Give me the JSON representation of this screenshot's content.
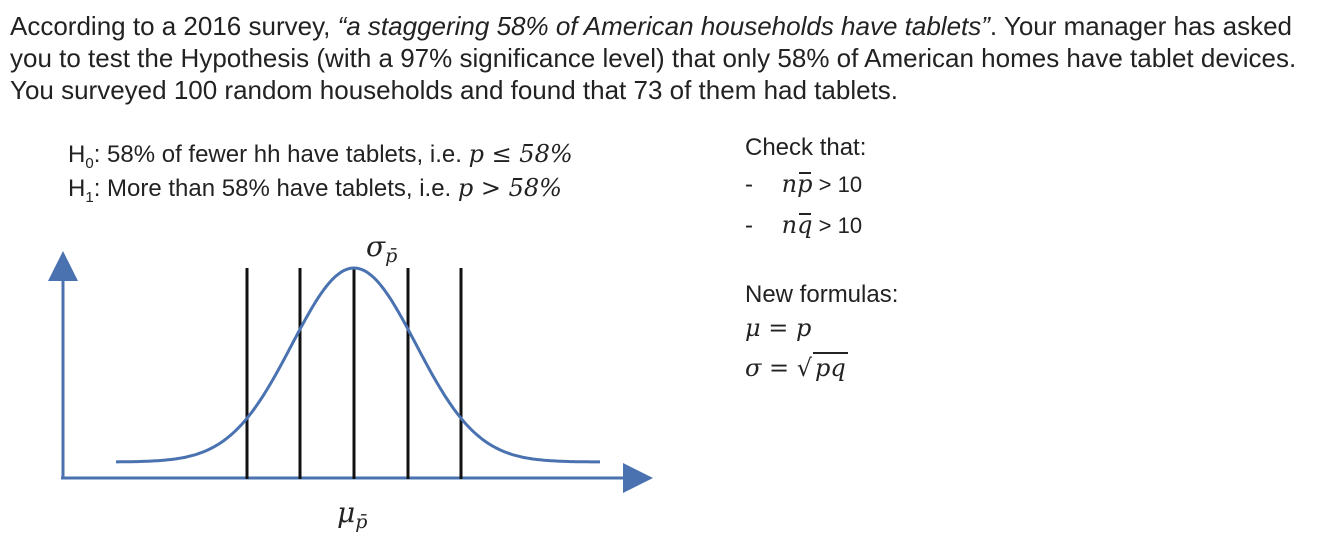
{
  "intro": {
    "part1": "According to a 2016 survey, ",
    "quote": "“a staggering 58% of American households have tablets”",
    "part2": ". Your manager has asked you to test the Hypothesis (with a 97% significance level) that only 58% of American homes have tablet devices. You surveyed 100 random households and found that 73 of them had tablets."
  },
  "hypotheses": {
    "h0_letter": "H",
    "h0_sub": "0",
    "h0_text": ": 58% of fewer hh have tablets, i.e. ",
    "h0_math": "p ≤ 58%",
    "h1_letter": "H",
    "h1_sub": "1",
    "h1_text": ": More than 58% have tablets, i.e. ",
    "h1_math": "p > 58%"
  },
  "check": {
    "title": "Check that:",
    "items": [
      {
        "dash": "-",
        "n": "n",
        "var": "p",
        "rest": " > 10"
      },
      {
        "dash": "-",
        "n": "n",
        "var": "q",
        "rest": " > 10"
      }
    ]
  },
  "formulas": {
    "title": "New formulas:",
    "mu_line": "μ = p",
    "sigma_lhs": "σ = √",
    "sigma_rad": "pq"
  },
  "diagram": {
    "sigma_symbol": "σ",
    "sigma_sub": "p̄",
    "mu_symbol": "μ",
    "mu_sub": "p̄",
    "curve_color": "#4a72b0",
    "axis_color": "#4a72b0",
    "line_color": "#111111"
  }
}
